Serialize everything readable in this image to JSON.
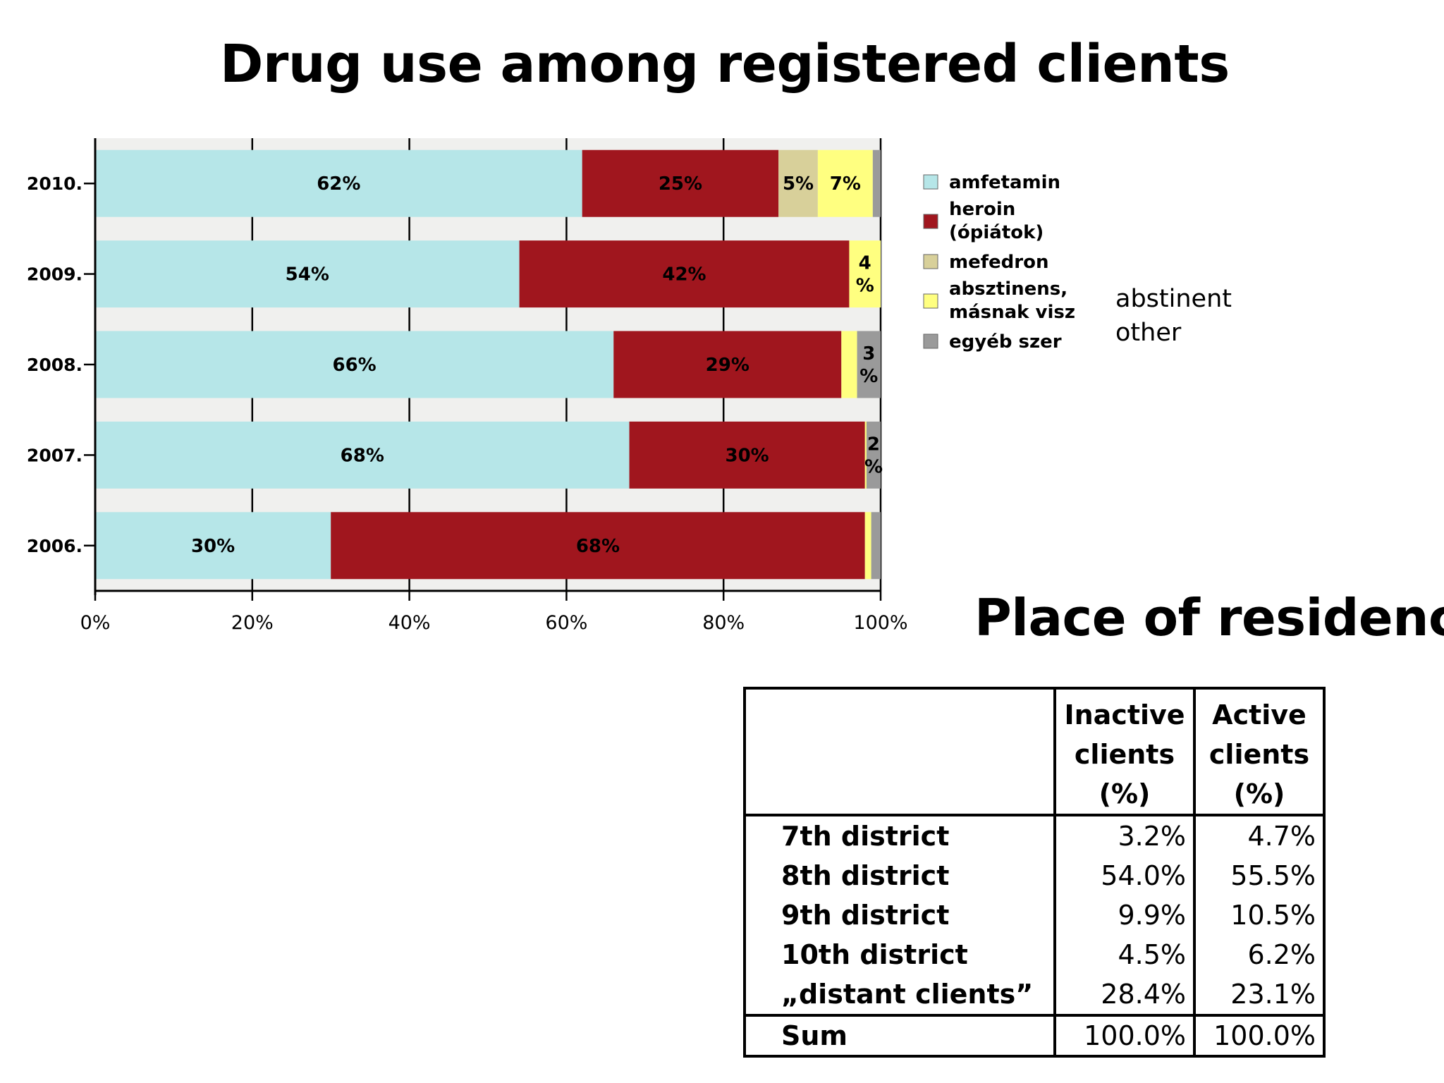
{
  "chart_data": {
    "type": "bar",
    "orientation": "horizontal",
    "stacked": true,
    "title": "Drug use among registered clients",
    "categories": [
      "2010.",
      "2009.",
      "2008.",
      "2007.",
      "2006."
    ],
    "series": [
      {
        "name": "amfetamin",
        "color": "#b6e6e8",
        "values": [
          62,
          54,
          66,
          68,
          30
        ],
        "labels": [
          "62%",
          "54%",
          "66%",
          "68%",
          "30%"
        ]
      },
      {
        "name": "heroin\n(ópiátok)",
        "color": "#a0161e",
        "values": [
          25,
          42,
          29,
          30,
          68
        ],
        "labels": [
          "25%",
          "42%",
          "29%",
          "30%",
          "68%"
        ]
      },
      {
        "name": "mefedron",
        "color": "#d8d09a",
        "values": [
          5,
          0,
          0,
          0,
          0
        ],
        "labels": [
          "5%",
          "",
          "",
          "",
          ""
        ]
      },
      {
        "name": "absztinens,\nmásnak visz",
        "color": "#ffff80",
        "values": [
          7,
          4,
          2,
          0.2,
          0.8
        ],
        "labels": [
          "7%",
          "4\n%",
          "",
          "",
          ""
        ]
      },
      {
        "name": "egyéb szer",
        "color": "#9a9a9a",
        "values": [
          1.5,
          1,
          3,
          2,
          1.2
        ],
        "labels": [
          "",
          "",
          "3\n%",
          "2\n%",
          ""
        ]
      }
    ],
    "xticks": [
      "0%",
      "20%",
      "40%",
      "60%",
      "80%",
      "100%"
    ],
    "xlim": [
      0,
      100
    ],
    "grid": true,
    "legend_position": "right"
  },
  "notes": {
    "abstinent": "abstinent",
    "other": "other"
  },
  "residency": {
    "title": "Place of residency",
    "headers": [
      "",
      "Inactive clients (%)",
      "Active clients (%)"
    ],
    "header_lines": [
      [
        "Inactive",
        "clients",
        "(%)"
      ],
      [
        "Active",
        "clients",
        "(%)"
      ]
    ],
    "rows": [
      {
        "label": "7th district",
        "inactive": "3.2%",
        "active": "4.7%"
      },
      {
        "label": "8th district",
        "inactive": "54.0%",
        "active": "55.5%"
      },
      {
        "label": "9th district",
        "inactive": "9.9%",
        "active": "10.5%"
      },
      {
        "label": "10th district",
        "inactive": "4.5%",
        "active": "6.2%"
      },
      {
        "label": "„distant clients”",
        "inactive": "28.4%",
        "active": "23.1%"
      }
    ],
    "sum": {
      "label": "Sum",
      "inactive": "100.0%",
      "active": "100.0%"
    }
  }
}
